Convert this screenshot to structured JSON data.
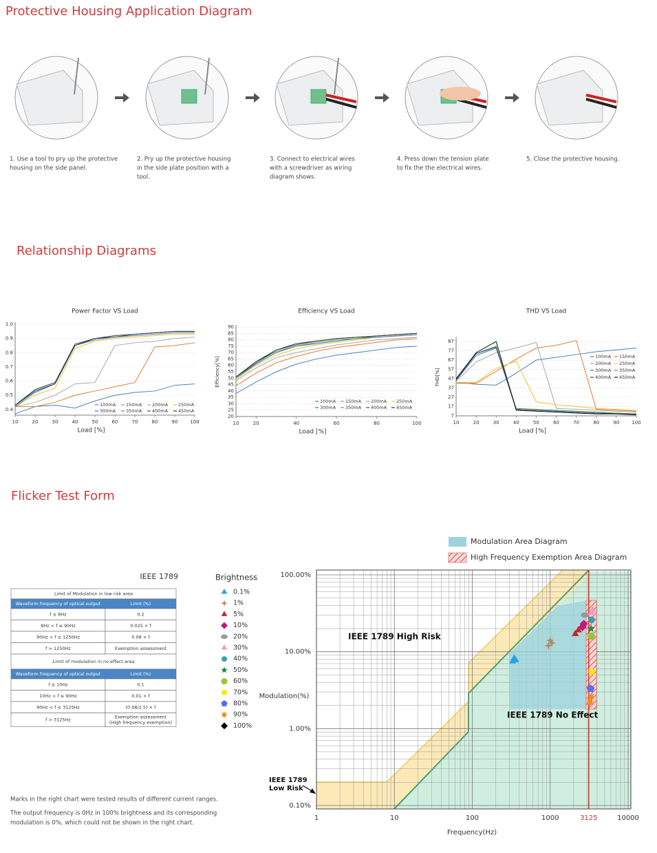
{
  "housing": {
    "title": "Protective Housing Application Diagram",
    "steps": [
      [
        "1. Use a tool to pry up the protective",
        "housing on the side panel."
      ],
      [
        "2. Pry up the protective housing",
        "in the side plate position with a",
        "tool."
      ],
      [
        "3. Connect to electrical wires",
        "with a screwdriver as wiring",
        "diagram shows."
      ],
      [
        "4. Press down the tension plate",
        "to fix the the electrical wires."
      ],
      [
        "5. Close the protective housing."
      ]
    ]
  },
  "relationship": {
    "title": "Relationship Diagrams"
  },
  "flicker": {
    "title": "Flicker Test Form",
    "table": {
      "title": "IEEE 1789",
      "groups": [
        {
          "heading": "Limit of Modulation in low risk area",
          "columns": [
            "Waveform frequency of optical output",
            "Limit (%)"
          ],
          "rows": [
            [
              "f ≤ 8Hz",
              "0.2"
            ],
            [
              "8Hz < f ≤ 90Hz",
              "0.025 × f"
            ],
            [
              "90Hz < f ≤ 1250Hz",
              "0.08 × f"
            ],
            [
              "f > 1250Hz",
              "Exemption assessment"
            ]
          ]
        },
        {
          "heading": "Limit of modulation in no effect area",
          "columns": [
            "Waveform frequency of optical output",
            "Limit (%)"
          ],
          "rows": [
            [
              "f ≤ 10Hz",
              "0.1"
            ],
            [
              "10Hz < f ≤ 90Hz",
              "0.01 × f"
            ],
            [
              "90Hz < f ≤ 3125Hz",
              "(0.08/2.5) × f"
            ],
            [
              "f > 3125Hz",
              [
                "Exemption assessment",
                "(High frequency exemption)"
              ]
            ]
          ]
        }
      ]
    },
    "notes": [
      [
        "Marks in the right chart were tested results of different current ranges."
      ],
      [
        "The output frequency is 0Hz in 100% brightness and its corresponding",
        "modulation is 0%, which could not be shown in the right chart."
      ]
    ]
  },
  "chart_data": [
    {
      "type": "line",
      "title": "Power Factor VS  Load",
      "x_label": "Load [%]",
      "x": [
        10,
        20,
        30,
        40,
        50,
        60,
        70,
        80,
        90,
        100
      ],
      "xlim": [
        10,
        100
      ],
      "xticks": [
        10,
        20,
        30,
        40,
        50,
        60,
        70,
        80,
        90,
        100
      ],
      "ylim": [
        0.36,
        1.0
      ],
      "yticks": [
        {
          "value": 1,
          "label": "1.0"
        },
        0.9,
        0.8,
        0.7,
        0.6,
        0.5,
        0.4
      ],
      "grid": true,
      "series": [
        {
          "name": "100mA",
          "color": "#4a7fbf",
          "values": [
            0.37,
            0.42,
            0.43,
            0.41,
            0.46,
            0.5,
            0.52,
            0.53,
            0.57,
            0.58
          ]
        },
        {
          "name": "150mA",
          "color": "#e07b39",
          "values": [
            0.42,
            0.42,
            0.45,
            0.5,
            0.53,
            0.56,
            0.59,
            0.84,
            0.85,
            0.87
          ]
        },
        {
          "name": "200mA",
          "color": "#a6a6a6",
          "values": [
            0.42,
            0.45,
            0.5,
            0.58,
            0.59,
            0.85,
            0.87,
            0.88,
            0.9,
            0.91
          ]
        },
        {
          "name": "250mA",
          "color": "#f2c12e",
          "values": [
            0.42,
            0.5,
            0.55,
            0.83,
            0.88,
            0.9,
            0.91,
            0.92,
            0.93,
            0.93
          ]
        },
        {
          "name": "300mA",
          "color": "#3f6fb0",
          "values": [
            0.42,
            0.52,
            0.58,
            0.85,
            0.89,
            0.91,
            0.92,
            0.93,
            0.94,
            0.94
          ]
        },
        {
          "name": "350mA",
          "color": "#5b9b4c",
          "values": [
            0.43,
            0.53,
            0.58,
            0.85,
            0.9,
            0.91,
            0.93,
            0.94,
            0.95,
            0.95
          ]
        },
        {
          "name": "400mA",
          "color": "#2f4d7a",
          "values": [
            0.43,
            0.53,
            0.58,
            0.85,
            0.9,
            0.91,
            0.93,
            0.94,
            0.95,
            0.95
          ]
        },
        {
          "name": "450mA",
          "color": "#333333",
          "values": [
            0.43,
            0.54,
            0.59,
            0.86,
            0.9,
            0.92,
            0.93,
            0.94,
            0.95,
            0.95
          ]
        }
      ]
    },
    {
      "type": "line",
      "title": "Efficiency VS Load",
      "x_label": "Load [%]",
      "y_label": "Efficiency[%]",
      "x": [
        10,
        20,
        30,
        40,
        50,
        60,
        70,
        80,
        90,
        100
      ],
      "xlim": [
        10,
        100
      ],
      "xticks": [
        10,
        20,
        40,
        60,
        80,
        100
      ],
      "ylim": [
        20,
        90
      ],
      "yticks": [
        90,
        85,
        80,
        75,
        70,
        65,
        60,
        55,
        50,
        45,
        40,
        35,
        30,
        25,
        20
      ],
      "grid": true,
      "series": [
        {
          "name": "100mA",
          "color": "#4a7fbf",
          "values": [
            38,
            47,
            55,
            61,
            65,
            68,
            70,
            72,
            74,
            75
          ]
        },
        {
          "name": "150mA",
          "color": "#e07b39",
          "values": [
            44,
            54,
            62,
            67,
            71,
            74,
            76,
            78,
            80,
            81
          ]
        },
        {
          "name": "200mA",
          "color": "#a6a6a6",
          "values": [
            48,
            58,
            66,
            70,
            73,
            76,
            78,
            80,
            81,
            82
          ]
        },
        {
          "name": "250mA",
          "color": "#f2c12e",
          "values": [
            49,
            60,
            68,
            73,
            76,
            78,
            80,
            82,
            83,
            84
          ]
        },
        {
          "name": "300mA",
          "color": "#3f6fb0",
          "values": [
            50,
            61,
            70,
            75,
            77,
            79,
            81,
            82,
            83,
            84
          ]
        },
        {
          "name": "350mA",
          "color": "#5b9b4c",
          "values": [
            50,
            62,
            71,
            75,
            78,
            80,
            81,
            83,
            84,
            85
          ]
        },
        {
          "name": "400mA",
          "color": "#2f4d7a",
          "values": [
            51,
            62,
            72,
            76,
            79,
            81,
            82,
            83,
            84,
            85
          ]
        },
        {
          "name": "450mA",
          "color": "#333333",
          "values": [
            51,
            63,
            72,
            77,
            79,
            81,
            82,
            83,
            84,
            85
          ]
        }
      ]
    },
    {
      "type": "line",
      "title": "THD VS Load",
      "x_label": "Load [%]",
      "y_label": "THD[%]",
      "x": [
        10,
        20,
        30,
        40,
        50,
        60,
        70,
        80,
        90,
        100
      ],
      "xlim": [
        10,
        100
      ],
      "xticks": [
        10,
        20,
        30,
        40,
        50,
        60,
        70,
        80,
        90,
        100
      ],
      "ylim": [
        7,
        90
      ],
      "yticks": [
        87,
        77,
        67,
        57,
        47,
        37,
        27,
        17,
        7
      ],
      "grid": true,
      "series": [
        {
          "name": "100mA",
          "color": "#4a7fbf",
          "values": [
            43,
            41,
            40,
            53,
            67,
            70,
            73,
            76,
            78,
            80
          ]
        },
        {
          "name": "150mA",
          "color": "#e07b39",
          "values": [
            42,
            42,
            55,
            68,
            80,
            83,
            88,
            14,
            13,
            12
          ]
        },
        {
          "name": "200mA",
          "color": "#a6a6a6",
          "values": [
            44,
            65,
            75,
            80,
            86,
            15,
            14,
            13,
            12,
            11
          ]
        },
        {
          "name": "250mA",
          "color": "#f2c12e",
          "values": [
            43,
            43,
            58,
            66,
            22,
            19,
            17,
            15,
            14,
            13
          ]
        },
        {
          "name": "300mA",
          "color": "#3f6fb0",
          "values": [
            45,
            72,
            80,
            14,
            13,
            12,
            11,
            10,
            10,
            9
          ]
        },
        {
          "name": "350mA",
          "color": "#5b9b4c",
          "values": [
            46,
            74,
            82,
            15,
            14,
            13,
            12,
            11,
            10,
            9
          ]
        },
        {
          "name": "400mA",
          "color": "#2f4d7a",
          "values": [
            46,
            74,
            81,
            14,
            13,
            12,
            11,
            10,
            9,
            9
          ]
        },
        {
          "name": "450mA",
          "color": "#111111",
          "values": [
            47,
            75,
            87,
            13,
            12,
            11,
            10,
            9,
            9,
            8
          ]
        }
      ]
    },
    {
      "type": "scatter",
      "x_label": "Frequency(Hz)",
      "y_label": "Modulation(%)",
      "legend_title": "Brightness",
      "log_x": true,
      "log_y": true,
      "minor_grid": true,
      "xlim": [
        1,
        10000
      ],
      "xticks": [
        1,
        10,
        100,
        1000,
        3125,
        10000
      ],
      "ylim": [
        0.1,
        100
      ],
      "yticks": [
        {
          "value": 0.1,
          "label": "0.10%"
        },
        {
          "value": 1,
          "label": "1.00%"
        },
        {
          "value": 10,
          "label": "10.00%"
        },
        {
          "value": 100,
          "label": "100.00%"
        }
      ],
      "reference_line": {
        "x": 3125,
        "color": "#c0392b"
      },
      "area_legend": [
        {
          "name": "Modulation Area Diagram",
          "color": "#9dd3dc"
        },
        {
          "name": "High Frequency Exemption Area Diagram",
          "color": "#d9534f"
        }
      ],
      "annotations": [
        [
          "IEEE 1789 High Risk"
        ],
        [
          "IEEE 1789 No Effect"
        ],
        [
          "IEEE 1789",
          "Low Risk"
        ]
      ],
      "series": [
        {
          "name": "0.1%",
          "color": "#29a3e0",
          "marker": "triangle",
          "x": [
            330,
            345,
            360
          ],
          "values": [
            7.5,
            8.2,
            7.8
          ]
        },
        {
          "name": "1%",
          "color": "#b08a6a",
          "marker": "star4",
          "x": [
            950,
            1000,
            1050
          ],
          "values": [
            12,
            14,
            13
          ]
        },
        {
          "name": "5%",
          "color": "#c0282d",
          "marker": "triangle",
          "x": [
            2100,
            2300
          ],
          "values": [
            17,
            19
          ]
        },
        {
          "name": "10%",
          "color": "#c2177c",
          "marker": "diamond",
          "x": [
            2600,
            2700
          ],
          "values": [
            21,
            23
          ]
        },
        {
          "name": "20%",
          "color": "#999999",
          "marker": "ellipse",
          "x": [
            2800
          ],
          "values": [
            30
          ]
        },
        {
          "name": "30%",
          "color": "#f29ac4",
          "marker": "triangle",
          "x": [
            3400,
            3500
          ],
          "values": [
            32,
            35
          ]
        },
        {
          "name": "40%",
          "color": "#3a9fb0",
          "marker": "circle",
          "x": [
            3400
          ],
          "values": [
            26
          ]
        },
        {
          "name": "50%",
          "color": "#1e8a4c",
          "marker": "star5",
          "x": [
            3350
          ],
          "values": [
            20
          ]
        },
        {
          "name": "60%",
          "color": "#9bc43a",
          "marker": "hexagon",
          "x": [
            3350
          ],
          "values": [
            16
          ]
        },
        {
          "name": "70%",
          "color": "#ffe500",
          "marker": "square",
          "x": [
            3400
          ],
          "values": [
            5.5
          ]
        },
        {
          "name": "80%",
          "color": "#5b6ee8",
          "marker": "pentagon",
          "x": [
            3300
          ],
          "values": [
            3.3
          ]
        },
        {
          "name": "90%",
          "color": "#f08a24",
          "marker": "burst",
          "x": [
            3250,
            3350
          ],
          "values": [
            2.2,
            2.6
          ]
        },
        {
          "name": "100%",
          "color": "#000000",
          "marker": "diamond",
          "x": [],
          "values": []
        }
      ]
    }
  ]
}
